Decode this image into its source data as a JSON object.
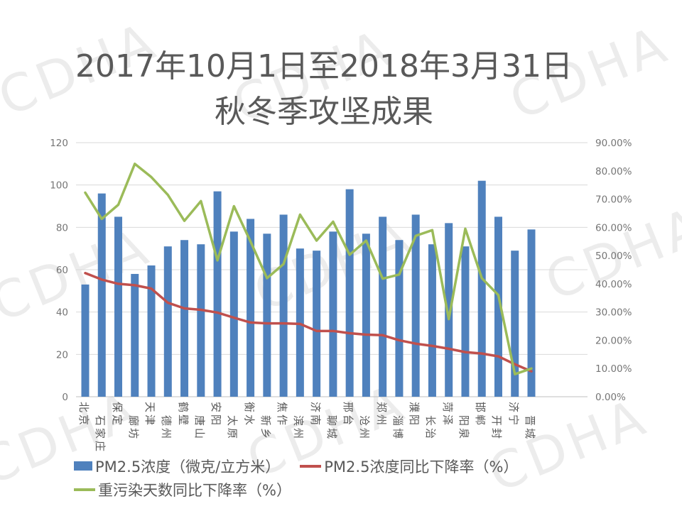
{
  "watermark": {
    "text": "CDHA"
  },
  "title": {
    "line1": "2017年10月1日至2018年3月31日",
    "line2": "秋冬季攻坚成果"
  },
  "legend": {
    "items": [
      {
        "label": "PM2.5浓度（微克/立方米）",
        "swatch": "bar",
        "color": "#4F81BD"
      },
      {
        "label": "PM2.5浓度同比下降率（%）",
        "swatch": "line",
        "color": "#C0504D"
      },
      {
        "label": "重污染天数同比下降率（%）",
        "swatch": "line",
        "color": "#9BBB59"
      }
    ]
  },
  "chart_data": {
    "type": "combo-bar-line-dual-axis",
    "categories": [
      "北京",
      "石家庄",
      "保定",
      "廊坊",
      "天津",
      "德州",
      "鹤壁",
      "唐山",
      "安阳",
      "太原",
      "衡水",
      "新乡",
      "焦作",
      "滨州",
      "济南",
      "聊城",
      "邢台",
      "沧州",
      "郑州",
      "淄博",
      "濮阳",
      "长治",
      "菏泽",
      "阳泉",
      "邯郸",
      "开封",
      "济宁",
      "晋城"
    ],
    "series": [
      {
        "name": "PM2.5浓度（微克/立方米）",
        "type": "bar",
        "axis": "left",
        "color": "#4F81BD",
        "values": [
          53,
          96,
          85,
          58,
          62,
          71,
          74,
          72,
          97,
          78,
          84,
          77,
          86,
          70,
          69,
          78,
          98,
          77,
          85,
          74,
          86,
          72,
          82,
          71,
          102,
          85,
          69,
          79
        ]
      },
      {
        "name": "PM2.5浓度同比下降率（%）",
        "type": "line",
        "axis": "right",
        "color": "#C0504D",
        "values": [
          43.8,
          41.5,
          40,
          39.5,
          38.3,
          33.3,
          31.3,
          30.8,
          29.8,
          28,
          26.3,
          26,
          26,
          25.8,
          23.3,
          23.3,
          22.5,
          22,
          21.8,
          20,
          18.8,
          18,
          17,
          15.8,
          15.3,
          14.3,
          11.5,
          9
        ]
      },
      {
        "name": "重污染天数同比下降率（%）",
        "type": "line",
        "axis": "right",
        "color": "#9BBB59",
        "values": [
          72.3,
          63,
          68,
          82.5,
          77.8,
          71.5,
          62.3,
          69.3,
          48.3,
          67.5,
          55,
          42,
          47,
          64.5,
          55.3,
          62,
          50.3,
          55.3,
          41.8,
          43.3,
          57,
          59,
          27.5,
          59.5,
          42,
          36,
          8,
          10
        ]
      }
    ],
    "left_axis": {
      "min": 0,
      "max": 120,
      "step": 20,
      "tick_labels": [
        "0",
        "20",
        "40",
        "60",
        "80",
        "100",
        "120"
      ]
    },
    "right_axis": {
      "min": 0,
      "max": 90,
      "step": 10,
      "tick_labels": [
        "0.00%",
        "10.00%",
        "20.00%",
        "30.00%",
        "40.00%",
        "50.00%",
        "60.00%",
        "70.00%",
        "80.00%",
        "90.00%"
      ]
    },
    "grid": "horizontal-major",
    "legend_position": "bottom"
  }
}
